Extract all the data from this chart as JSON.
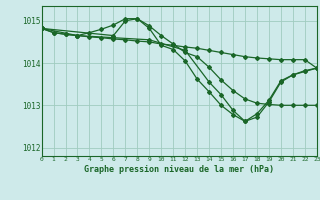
{
  "title": "Graphe pression niveau de la mer (hPa)",
  "background_color": "#ceeaea",
  "grid_color": "#a0ccc0",
  "line_color": "#1a6628",
  "xlim": [
    0,
    23
  ],
  "ylim": [
    1011.8,
    1015.35
  ],
  "yticks": [
    1012,
    1013,
    1014,
    1015
  ],
  "xticks": [
    0,
    1,
    2,
    3,
    4,
    5,
    6,
    7,
    8,
    9,
    10,
    11,
    12,
    13,
    14,
    15,
    16,
    17,
    18,
    19,
    20,
    21,
    22,
    23
  ],
  "series": [
    {
      "x": [
        0,
        1,
        2,
        3,
        4,
        5,
        6,
        7,
        8,
        9,
        10,
        11,
        12,
        13,
        14,
        15,
        16,
        17,
        18,
        19,
        20,
        21,
        22,
        23
      ],
      "y": [
        1014.82,
        1014.72,
        1014.68,
        1014.65,
        1014.62,
        1014.6,
        1014.57,
        1014.55,
        1014.52,
        1014.5,
        1014.45,
        1014.42,
        1014.38,
        1014.35,
        1014.3,
        1014.25,
        1014.2,
        1014.15,
        1014.12,
        1014.1,
        1014.08,
        1014.08,
        1014.08,
        1013.88
      ],
      "marker": "D",
      "markersize": 2.0,
      "linewidth": 0.9
    },
    {
      "x": [
        0,
        1,
        2,
        3,
        4,
        5,
        6,
        7,
        8,
        9,
        10,
        11,
        12,
        13,
        14,
        15,
        16,
        17,
        18,
        19,
        20,
        21,
        22,
        23
      ],
      "y": [
        1014.82,
        1014.72,
        1014.68,
        1014.65,
        1014.72,
        1014.8,
        1014.9,
        1015.05,
        1015.05,
        1014.88,
        1014.65,
        1014.45,
        1014.25,
        1014.15,
        1013.9,
        1013.6,
        1013.35,
        1013.15,
        1013.05,
        1013.02,
        1013.0,
        1013.0,
        1013.0,
        1013.0
      ],
      "marker": "D",
      "markersize": 2.0,
      "linewidth": 0.9
    },
    {
      "x": [
        0,
        3,
        6,
        9,
        12,
        14,
        15,
        16,
        17,
        18,
        19,
        20,
        21,
        22,
        23
      ],
      "y": [
        1014.82,
        1014.65,
        1014.6,
        1014.55,
        1014.3,
        1013.55,
        1013.25,
        1012.88,
        1012.62,
        1012.8,
        1013.12,
        1013.58,
        1013.72,
        1013.82,
        1013.88
      ],
      "marker": "D",
      "markersize": 2.0,
      "linewidth": 0.9
    },
    {
      "x": [
        0,
        6,
        7,
        8,
        9,
        10,
        11,
        12,
        13,
        14,
        15,
        16,
        17,
        18,
        19,
        20,
        21,
        22,
        23
      ],
      "y": [
        1014.82,
        1014.65,
        1015.0,
        1015.05,
        1014.82,
        1014.42,
        1014.32,
        1014.05,
        1013.62,
        1013.32,
        1013.0,
        1012.78,
        1012.62,
        1012.72,
        1013.08,
        1013.55,
        1013.72,
        1013.8,
        1013.88
      ],
      "marker": "D",
      "markersize": 2.0,
      "linewidth": 0.9
    }
  ]
}
